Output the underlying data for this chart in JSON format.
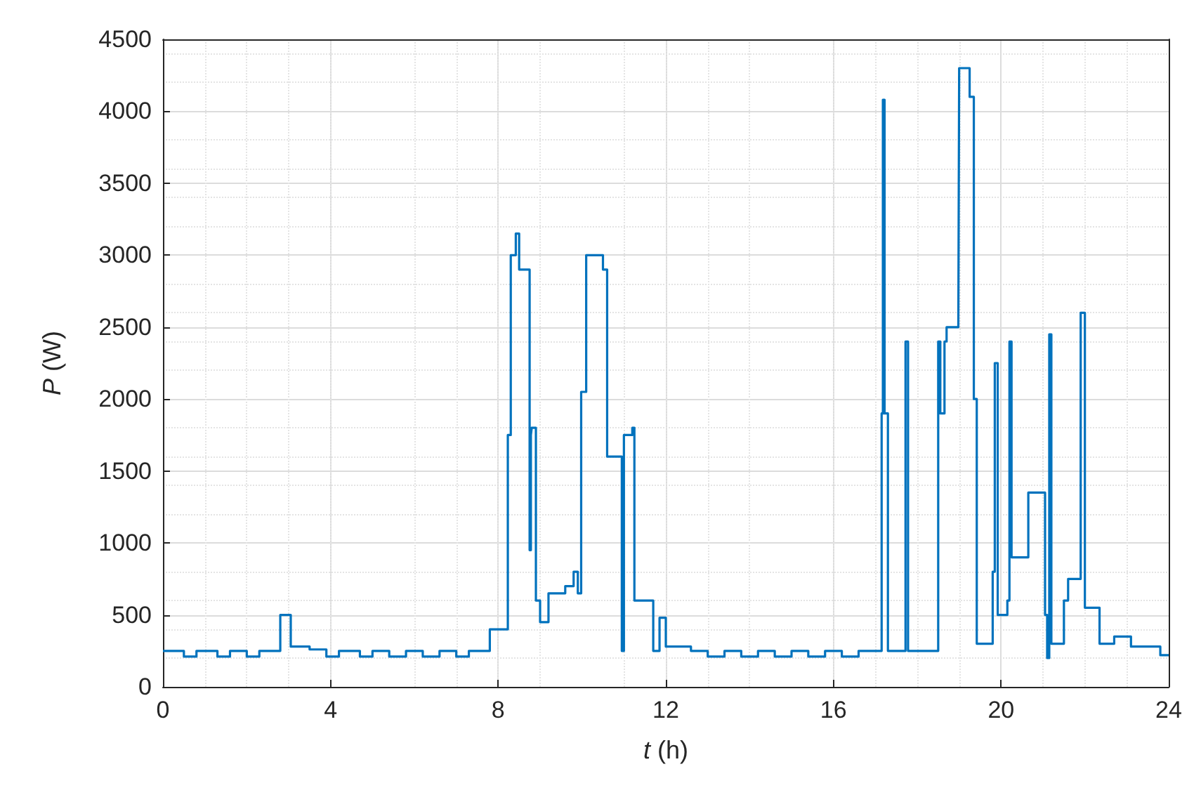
{
  "chart_data": {
    "type": "step",
    "xlabel": "t (h)",
    "ylabel": "P (W)",
    "xlim": [
      0,
      24
    ],
    "xticks": [
      0,
      4,
      8,
      12,
      16,
      20,
      24
    ],
    "ylim": [
      0,
      4500
    ],
    "yticks": [
      0,
      500,
      1000,
      1500,
      2000,
      2500,
      3000,
      3500,
      4000,
      4500
    ],
    "grid": true,
    "marker": "none",
    "line_style": "solid",
    "series": [
      {
        "color": "#0072bd",
        "x": [
          0,
          0.5,
          0.8,
          1.3,
          1.6,
          2.0,
          2.3,
          2.8,
          3.05,
          3.5,
          3.9,
          4.2,
          4.7,
          5.0,
          5.4,
          5.8,
          6.2,
          6.6,
          7.0,
          7.3,
          7.8,
          8.23,
          8.3,
          8.42,
          8.5,
          8.75,
          8.78,
          8.8,
          8.9,
          9.0,
          9.2,
          9.6,
          9.8,
          9.9,
          9.98,
          10.1,
          10.5,
          10.6,
          10.95,
          11.0,
          11.2,
          11.25,
          11.5,
          11.7,
          11.85,
          12.0,
          12.6,
          13.0,
          13.4,
          13.8,
          14.2,
          14.6,
          15.0,
          15.4,
          15.8,
          16.2,
          16.6,
          17.15,
          17.18,
          17.22,
          17.3,
          17.72,
          17.78,
          18.5,
          18.55,
          18.65,
          18.7,
          18.98,
          19.0,
          19.25,
          19.35,
          19.42,
          19.8,
          19.85,
          19.92,
          20.15,
          20.2,
          20.25,
          20.6,
          20.65,
          21.05,
          21.1,
          21.15,
          21.2,
          21.5,
          21.6,
          21.85,
          21.9,
          22.0,
          22.35,
          22.7,
          23.1,
          23.8,
          24
        ],
        "values": [
          250,
          210,
          250,
          210,
          250,
          210,
          250,
          500,
          280,
          260,
          210,
          250,
          210,
          250,
          210,
          250,
          210,
          250,
          210,
          250,
          400,
          1750,
          3000,
          3150,
          2900,
          950,
          1750,
          1800,
          600,
          450,
          650,
          700,
          800,
          650,
          2050,
          3000,
          2900,
          1600,
          250,
          1750,
          1800,
          600,
          600,
          250,
          480,
          280,
          250,
          210,
          250,
          210,
          250,
          210,
          250,
          210,
          250,
          210,
          250,
          1900,
          4080,
          1900,
          250,
          2400,
          250,
          2400,
          1900,
          2400,
          2500,
          2500,
          4300,
          4100,
          2000,
          300,
          800,
          2250,
          500,
          600,
          2400,
          900,
          900,
          1350,
          500,
          200,
          2450,
          300,
          600,
          750,
          750,
          2600,
          550,
          300,
          350,
          280,
          220,
          220
        ]
      }
    ]
  }
}
